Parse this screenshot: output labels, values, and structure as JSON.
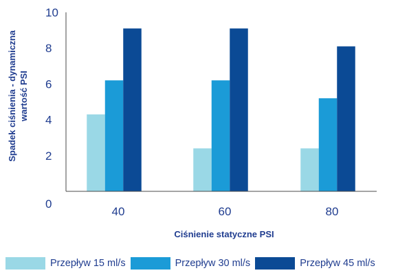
{
  "chart_data": {
    "type": "bar",
    "categories": [
      "40",
      "60",
      "80"
    ],
    "series": [
      {
        "name": "Przepływ 15 ml/s",
        "values": [
          4.3,
          2.4,
          2.4
        ],
        "color": "#9ad8e6"
      },
      {
        "name": "Przepływ 30 ml/s",
        "values": [
          6.2,
          6.2,
          5.2
        ],
        "color": "#1b9bd7"
      },
      {
        "name": "Przepływ 45 ml/s",
        "values": [
          9.1,
          9.1,
          8.1
        ],
        "color": "#0b4a95"
      }
    ],
    "title": "",
    "xlabel": "Ciśnienie statyczne PSI",
    "ylabel": "Spadek ciśnienia - dynamiczna wartość PSI",
    "ylim": [
      0,
      10
    ],
    "yticks": [
      "0",
      "2",
      "4",
      "6",
      "8",
      "10"
    ],
    "grid": false,
    "legend_position": "bottom",
    "axis_color": "#4a4a4a",
    "text_color": "#1f3c8f"
  }
}
